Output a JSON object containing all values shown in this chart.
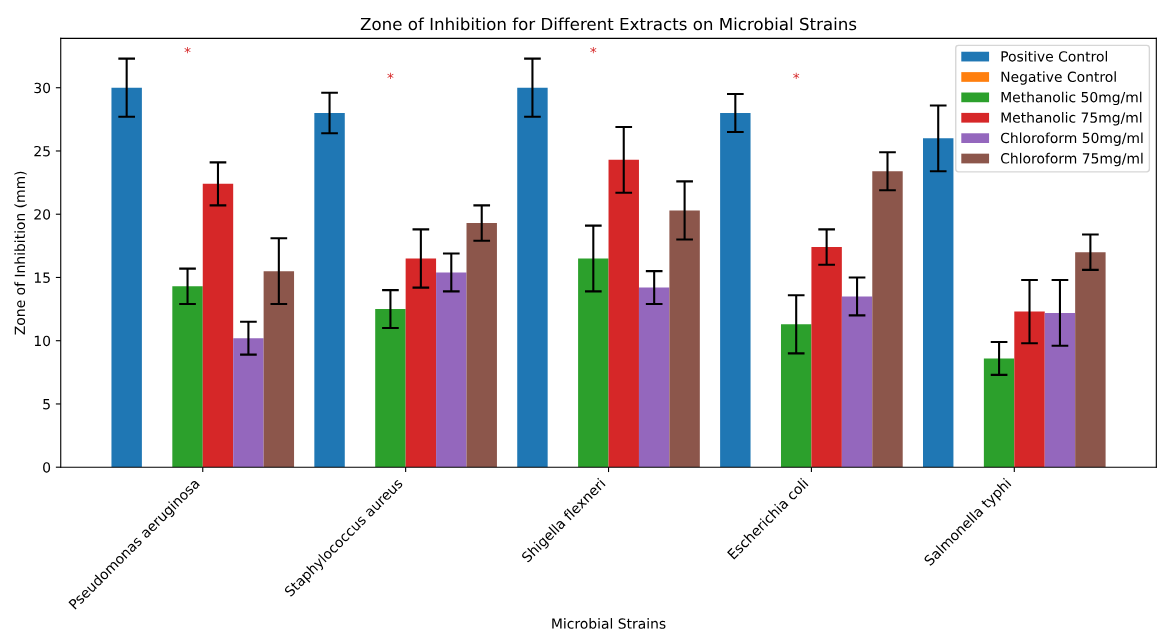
{
  "chart_data": {
    "type": "bar",
    "title": "Zone of Inhibition for Different Extracts on Microbial Strains",
    "xlabel": "Microbial Strains",
    "ylabel": "Zone of Inhibition (mm)",
    "categories": [
      "Pseudomonas aeruginosa",
      "Staphylococcus aureus",
      "Shigella flexneri",
      "Escherichia coli",
      "Salmonella typhi"
    ],
    "series": [
      {
        "name": "Positive Control",
        "color": "#1f77b4",
        "values": [
          30,
          28,
          30,
          28,
          26
        ],
        "errors": [
          2.3,
          1.6,
          2.3,
          1.5,
          2.6
        ]
      },
      {
        "name": "Negative Control",
        "color": "#ff7f0e",
        "values": [
          0,
          0,
          0,
          0,
          0
        ]
      },
      {
        "name": "Methanolic 50mg/ml",
        "color": "#2ca02c",
        "values": [
          14.3,
          12.5,
          16.5,
          11.3,
          8.6
        ],
        "errors": [
          1.4,
          1.5,
          2.6,
          2.3,
          1.3
        ]
      },
      {
        "name": "Methanolic 75mg/ml",
        "color": "#d62728",
        "values": [
          22.4,
          16.5,
          24.3,
          17.4,
          12.3
        ],
        "errors": [
          1.7,
          2.3,
          2.6,
          1.4,
          2.5
        ]
      },
      {
        "name": "Chloroform 50mg/ml",
        "color": "#9467bd",
        "values": [
          10.2,
          15.4,
          14.2,
          13.5,
          12.2
        ],
        "errors": [
          1.3,
          1.5,
          1.3,
          1.5,
          2.6
        ]
      },
      {
        "name": "Chloroform 75mg/ml",
        "color": "#8c564b",
        "values": [
          15.5,
          19.3,
          20.3,
          23.4,
          17
        ],
        "errors": [
          2.6,
          1.4,
          2.3,
          1.5,
          1.4
        ]
      }
    ],
    "annotations": [
      "*",
      "*",
      "*",
      "*"
    ],
    "ylim": [
      0,
      33.9
    ],
    "yticks": [
      0,
      5,
      10,
      15,
      20,
      25,
      30
    ],
    "grid": false,
    "legend": "top right"
  }
}
